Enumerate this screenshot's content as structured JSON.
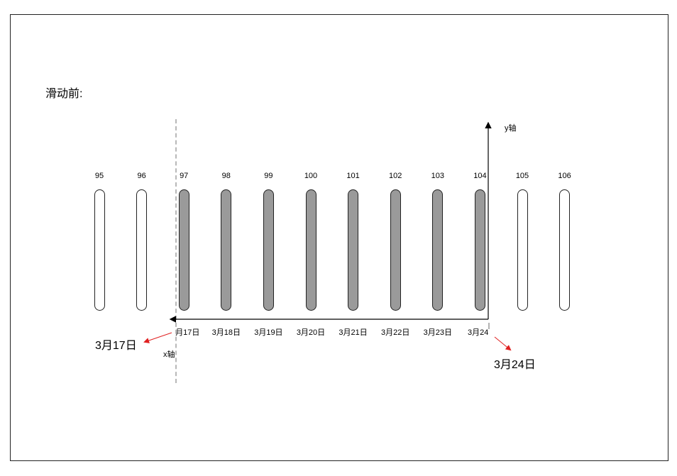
{
  "title": "滑动前:",
  "axes": {
    "y_label": "y轴",
    "x_label": "x轴"
  },
  "items": [
    {
      "label": "95",
      "state": "unselected"
    },
    {
      "label": "96",
      "state": "unselected"
    },
    {
      "label": "97",
      "state": "selected",
      "date": "3月17日"
    },
    {
      "label": "98",
      "state": "selected",
      "date": "3月18日"
    },
    {
      "label": "99",
      "state": "selected",
      "date": "3月19日"
    },
    {
      "label": "100",
      "state": "selected",
      "date": "3月20日"
    },
    {
      "label": "101",
      "state": "selected",
      "date": "3月21日"
    },
    {
      "label": "102",
      "state": "selected",
      "date": "3月22日"
    },
    {
      "label": "103",
      "state": "selected",
      "date": "3月23日"
    },
    {
      "label": "104",
      "state": "selected",
      "date": "3月24日"
    },
    {
      "label": "105",
      "state": "unselected"
    },
    {
      "label": "106",
      "state": "unselected"
    }
  ],
  "callouts": {
    "left": "3月17日",
    "right": "3月24日"
  },
  "colors": {
    "filled": "#9a9a9a",
    "arrow": "#e02020"
  }
}
